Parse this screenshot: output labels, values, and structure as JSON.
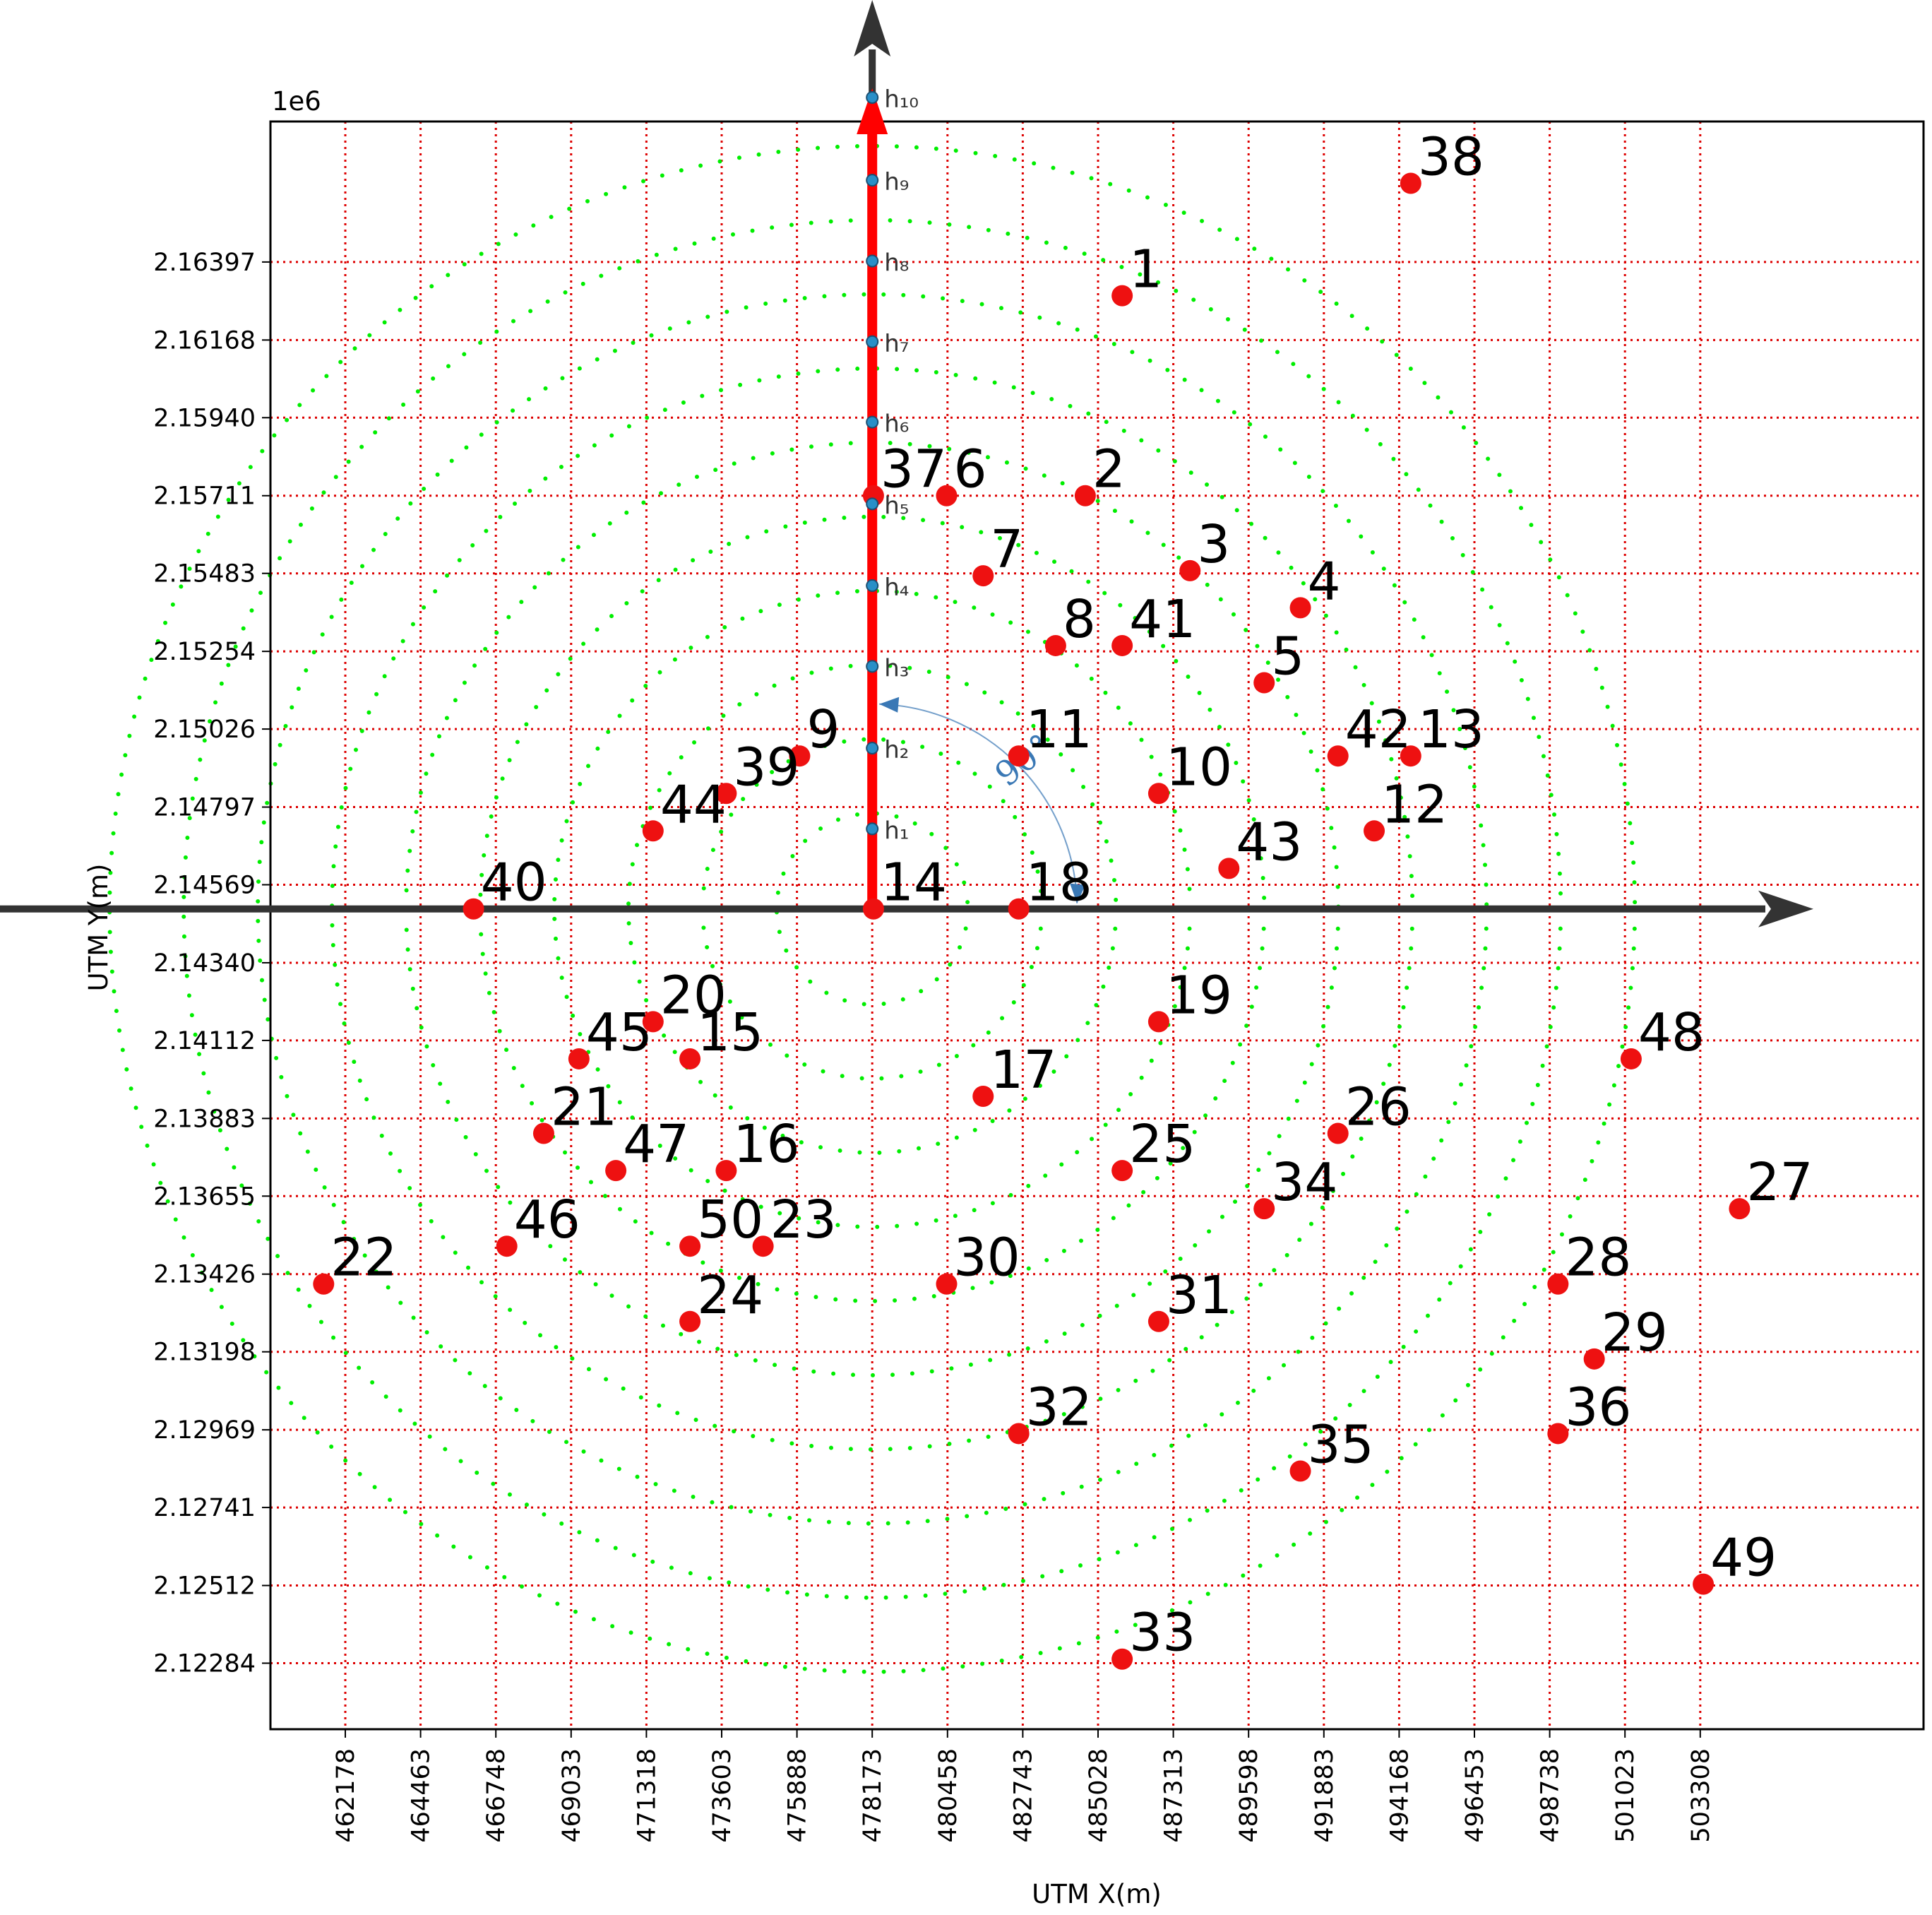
{
  "chart_data": {
    "type": "scatter",
    "xlabel": "UTM X(m)",
    "ylabel": "UTM Y(m)",
    "y_offset_label": "1e6",
    "xlim": [
      460166,
      505908
    ],
    "ylim": [
      2.1213,
      2.1686
    ],
    "x_ticks": [
      "462178",
      "464463",
      "466748",
      "469033",
      "471318",
      "473603",
      "475888",
      "478173",
      "480458",
      "482743",
      "485028",
      "487313",
      "489598",
      "491883",
      "494168",
      "496453",
      "498738",
      "501023",
      "503308"
    ],
    "y_ticks": [
      "2.16397",
      "2.16168",
      "2.15940",
      "2.15711",
      "2.15483",
      "2.15254",
      "2.15026",
      "2.14797",
      "2.14569",
      "2.14340",
      "2.14112",
      "2.13883",
      "2.13655",
      "2.13426",
      "2.13198",
      "2.12969",
      "2.12741",
      "2.12512",
      "2.12284"
    ],
    "grid": true,
    "center": {
      "x": 478173,
      "y": 2.14498
    },
    "circle_radii": [
      2900,
      5150,
      7400,
      9650,
      11900,
      14150,
      16400,
      18650,
      20900,
      23150
    ],
    "heading_markers": [
      {
        "label": "h₁",
        "y": 2.14733
      },
      {
        "label": "h₂",
        "y": 2.1497
      },
      {
        "label": "h₃",
        "y": 2.1521
      },
      {
        "label": "h₄",
        "y": 2.15447
      },
      {
        "label": "h₅",
        "y": 2.15687
      },
      {
        "label": "h₆",
        "y": 2.15927
      },
      {
        "label": "h₇",
        "y": 2.16163
      },
      {
        "label": "h₈",
        "y": 2.164
      },
      {
        "label": "h₉",
        "y": 2.16637
      },
      {
        "label": "h₁₀",
        "y": 2.1688
      }
    ],
    "angle_label": "90°",
    "points": [
      {
        "id": "1",
        "x": 485760,
        "y": 2.16298
      },
      {
        "id": "2",
        "x": 484640,
        "y": 2.15711
      },
      {
        "id": "3",
        "x": 487820,
        "y": 2.15491
      },
      {
        "id": "4",
        "x": 491170,
        "y": 2.15382
      },
      {
        "id": "5",
        "x": 490070,
        "y": 2.15162
      },
      {
        "id": "6",
        "x": 480430,
        "y": 2.15711
      },
      {
        "id": "7",
        "x": 481540,
        "y": 2.15476
      },
      {
        "id": "8",
        "x": 483740,
        "y": 2.15271
      },
      {
        "id": "9",
        "x": 475970,
        "y": 2.14947
      },
      {
        "id": "10",
        "x": 486870,
        "y": 2.14837
      },
      {
        "id": "11",
        "x": 482620,
        "y": 2.14947
      },
      {
        "id": "12",
        "x": 493410,
        "y": 2.14727
      },
      {
        "id": "13",
        "x": 494520,
        "y": 2.14947
      },
      {
        "id": "14",
        "x": 478210,
        "y": 2.14498
      },
      {
        "id": "15",
        "x": 472640,
        "y": 2.14058
      },
      {
        "id": "16",
        "x": 473740,
        "y": 2.1373
      },
      {
        "id": "17",
        "x": 481540,
        "y": 2.13948
      },
      {
        "id": "18",
        "x": 482620,
        "y": 2.14498
      },
      {
        "id": "19",
        "x": 486870,
        "y": 2.14167
      },
      {
        "id": "20",
        "x": 471520,
        "y": 2.14167
      },
      {
        "id": "21",
        "x": 468200,
        "y": 2.13839
      },
      {
        "id": "22",
        "x": 461520,
        "y": 2.13397
      },
      {
        "id": "23",
        "x": 474860,
        "y": 2.13508
      },
      {
        "id": "24",
        "x": 472640,
        "y": 2.13287
      },
      {
        "id": "25",
        "x": 485760,
        "y": 2.1373
      },
      {
        "id": "26",
        "x": 492310,
        "y": 2.13839
      },
      {
        "id": "27",
        "x": 504500,
        "y": 2.13618
      },
      {
        "id": "28",
        "x": 498990,
        "y": 2.13397
      },
      {
        "id": "29",
        "x": 500090,
        "y": 2.13177
      },
      {
        "id": "30",
        "x": 480430,
        "y": 2.13397
      },
      {
        "id": "31",
        "x": 486870,
        "y": 2.13287
      },
      {
        "id": "32",
        "x": 482620,
        "y": 2.12958
      },
      {
        "id": "33",
        "x": 485760,
        "y": 2.12296
      },
      {
        "id": "34",
        "x": 490070,
        "y": 2.13618
      },
      {
        "id": "35",
        "x": 491170,
        "y": 2.12848
      },
      {
        "id": "36",
        "x": 498990,
        "y": 2.12958
      },
      {
        "id": "37",
        "x": 478210,
        "y": 2.15711
      },
      {
        "id": "38",
        "x": 494520,
        "y": 2.16628
      },
      {
        "id": "39",
        "x": 473740,
        "y": 2.14837
      },
      {
        "id": "40",
        "x": 466070,
        "y": 2.14498
      },
      {
        "id": "41",
        "x": 485760,
        "y": 2.15271
      },
      {
        "id": "42",
        "x": 492310,
        "y": 2.14947
      },
      {
        "id": "43",
        "x": 489000,
        "y": 2.14617
      },
      {
        "id": "44",
        "x": 471520,
        "y": 2.14727
      },
      {
        "id": "45",
        "x": 469270,
        "y": 2.14058
      },
      {
        "id": "46",
        "x": 467080,
        "y": 2.13508
      },
      {
        "id": "47",
        "x": 470390,
        "y": 2.1373
      },
      {
        "id": "48",
        "x": 501210,
        "y": 2.14058
      },
      {
        "id": "49",
        "x": 503400,
        "y": 2.12516
      },
      {
        "id": "50",
        "x": 472640,
        "y": 2.13508
      }
    ]
  },
  "colors": {
    "point": "#ee1111",
    "grid": "#dd0000",
    "circles": "#00ee00",
    "axis_arrow": "#333333",
    "heading_arrow": "#ff0000",
    "marker": "#2a8fc7",
    "angle_arc": "#3a78b5"
  }
}
